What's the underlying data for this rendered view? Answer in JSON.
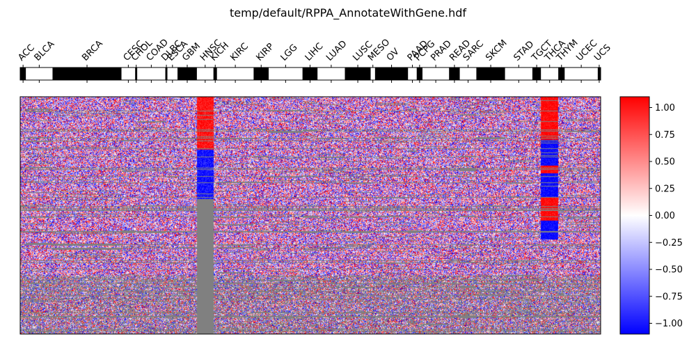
{
  "chart_data": [
    {
      "type": "heatmap",
      "title": "temp/default/RPPA_AnnotateWithGene.hdf",
      "xlabel": "",
      "ylabel": "",
      "groups": [
        {
          "label": "ACC",
          "fraction": 0.01
        },
        {
          "label": "BLCA",
          "fraction": 0.0462
        },
        {
          "label": "BRCA",
          "fraction": 0.1198
        },
        {
          "label": "CESC",
          "fraction": 0.0237
        },
        {
          "label": "CHOL",
          "fraction": 0.0037
        },
        {
          "label": "COAD",
          "fraction": 0.0487
        },
        {
          "label": "DLBC",
          "fraction": 0.0037
        },
        {
          "label": "ESCA",
          "fraction": 0.0175
        },
        {
          "label": "GBM",
          "fraction": 0.0337
        },
        {
          "label": "HNSC",
          "fraction": 0.0287
        },
        {
          "label": "KICH",
          "fraction": 0.0062
        },
        {
          "label": "KIRC",
          "fraction": 0.0636
        },
        {
          "label": "KIRP",
          "fraction": 0.0262
        },
        {
          "label": "LGG",
          "fraction": 0.0587
        },
        {
          "label": "LIHC",
          "fraction": 0.0262
        },
        {
          "label": "LUAD",
          "fraction": 0.0474
        },
        {
          "label": "LUSC",
          "fraction": 0.0449
        },
        {
          "label": "MESO",
          "fraction": 0.0075
        },
        {
          "label": "OV",
          "fraction": 0.0574
        },
        {
          "label": "PAAD",
          "fraction": 0.015
        },
        {
          "label": "PCPG",
          "fraction": 0.01
        },
        {
          "label": "PRAD",
          "fraction": 0.0462
        },
        {
          "label": "READ",
          "fraction": 0.0187
        },
        {
          "label": "SARC",
          "fraction": 0.0287
        },
        {
          "label": "SKCM",
          "fraction": 0.0499
        },
        {
          "label": "STAD",
          "fraction": 0.0474
        },
        {
          "label": "TGCT",
          "fraction": 0.015
        },
        {
          "label": "THCA",
          "fraction": 0.03
        },
        {
          "label": "THYM",
          "fraction": 0.0112
        },
        {
          "label": "UCEC",
          "fraction": 0.0574
        },
        {
          "label": "UCS",
          "fraction": 0.005
        }
      ],
      "legend": "none"
    },
    {
      "type": "heatmap",
      "colormap": "bwr",
      "colors": {
        "low": "#0000ff",
        "mid": "#ffffff",
        "high": "#ff0000",
        "missing": "#808080"
      },
      "vmin": -1.1,
      "vmax": 1.1,
      "colorbar_ticks": [
        "1.00",
        "0.75",
        "0.50",
        "0.25",
        "0.00",
        "−0.25",
        "−0.50",
        "−0.75",
        "−1.00"
      ],
      "colorbar_tick_values": [
        1.0,
        0.75,
        0.5,
        0.25,
        0.0,
        -0.25,
        -0.5,
        -0.75,
        -1.0
      ],
      "columns_follow_groups": true,
      "grid": false,
      "legend": "colorbar-right"
    }
  ]
}
